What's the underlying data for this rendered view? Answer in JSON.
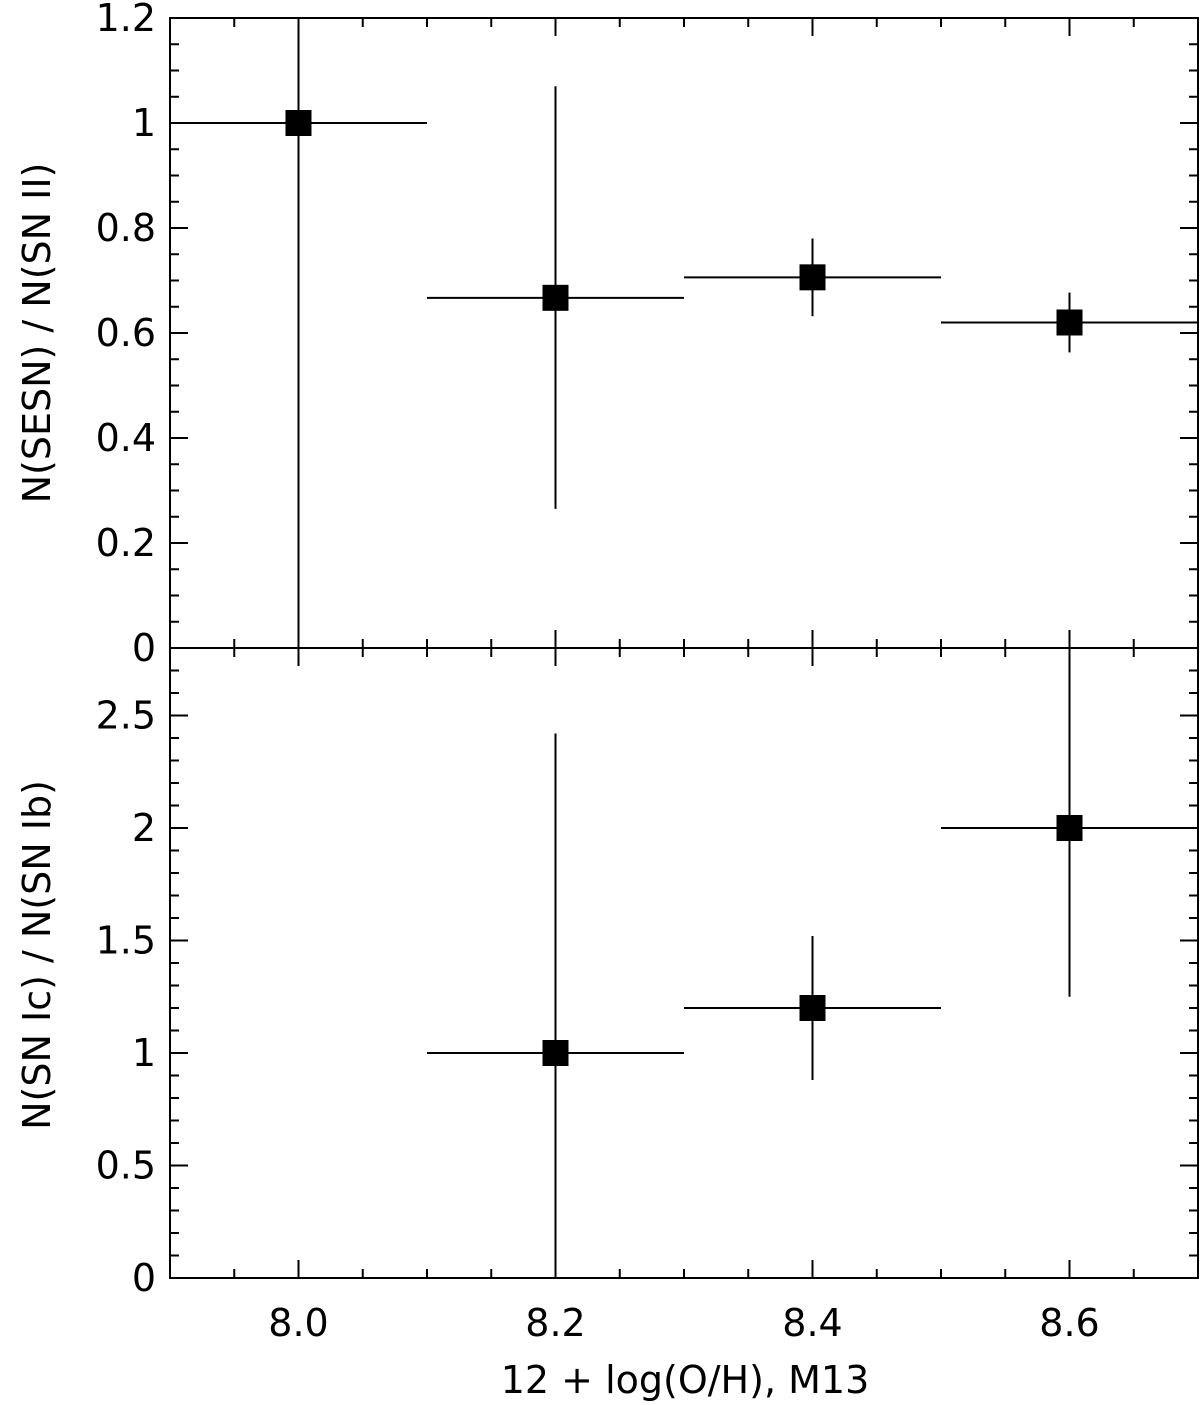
{
  "chart_data": [
    {
      "type": "scatter",
      "panel": "top",
      "xlabel": "12 + log(O/H), M13",
      "ylabel": "N(SESN) / N(SN II)",
      "xlim": [
        7.9,
        8.7
      ],
      "ylim": [
        0,
        1.2
      ],
      "x_ticks": [
        "8.0",
        "8.2",
        "8.4",
        "8.6"
      ],
      "y_ticks": [
        "0",
        "0.2",
        "0.4",
        "0.6",
        "0.8",
        "1",
        "1.2"
      ],
      "points": [
        {
          "x": 8.0,
          "y": 1.0,
          "x_low": 7.9,
          "x_high": 8.1,
          "y_low": 0.0,
          "y_high": 1.2
        },
        {
          "x": 8.2,
          "y": 0.667,
          "x_low": 8.1,
          "x_high": 8.3,
          "y_low": 0.265,
          "y_high": 1.07
        },
        {
          "x": 8.4,
          "y": 0.706,
          "x_low": 8.3,
          "x_high": 8.5,
          "y_low": 0.632,
          "y_high": 0.78
        },
        {
          "x": 8.6,
          "y": 0.62,
          "x_low": 8.5,
          "x_high": 8.7,
          "y_low": 0.563,
          "y_high": 0.677
        }
      ]
    },
    {
      "type": "scatter",
      "panel": "bottom",
      "xlabel": "12 + log(O/H), M13",
      "ylabel": "N(SN Ic) / N(SN Ib)",
      "xlim": [
        7.9,
        8.7
      ],
      "ylim": [
        0,
        2.8
      ],
      "x_ticks": [
        "8.0",
        "8.2",
        "8.4",
        "8.6"
      ],
      "y_ticks": [
        "0",
        "0.5",
        "1",
        "1.5",
        "2",
        "2.5"
      ],
      "points": [
        {
          "x": 8.2,
          "y": 1.0,
          "x_low": 8.1,
          "x_high": 8.3,
          "y_low": 0.0,
          "y_high": 2.42
        },
        {
          "x": 8.4,
          "y": 1.2,
          "x_low": 8.3,
          "x_high": 8.5,
          "y_low": 0.88,
          "y_high": 1.52
        },
        {
          "x": 8.6,
          "y": 2.0,
          "x_low": 8.5,
          "x_high": 8.7,
          "y_low": 1.25,
          "y_high": 2.75
        }
      ]
    }
  ]
}
